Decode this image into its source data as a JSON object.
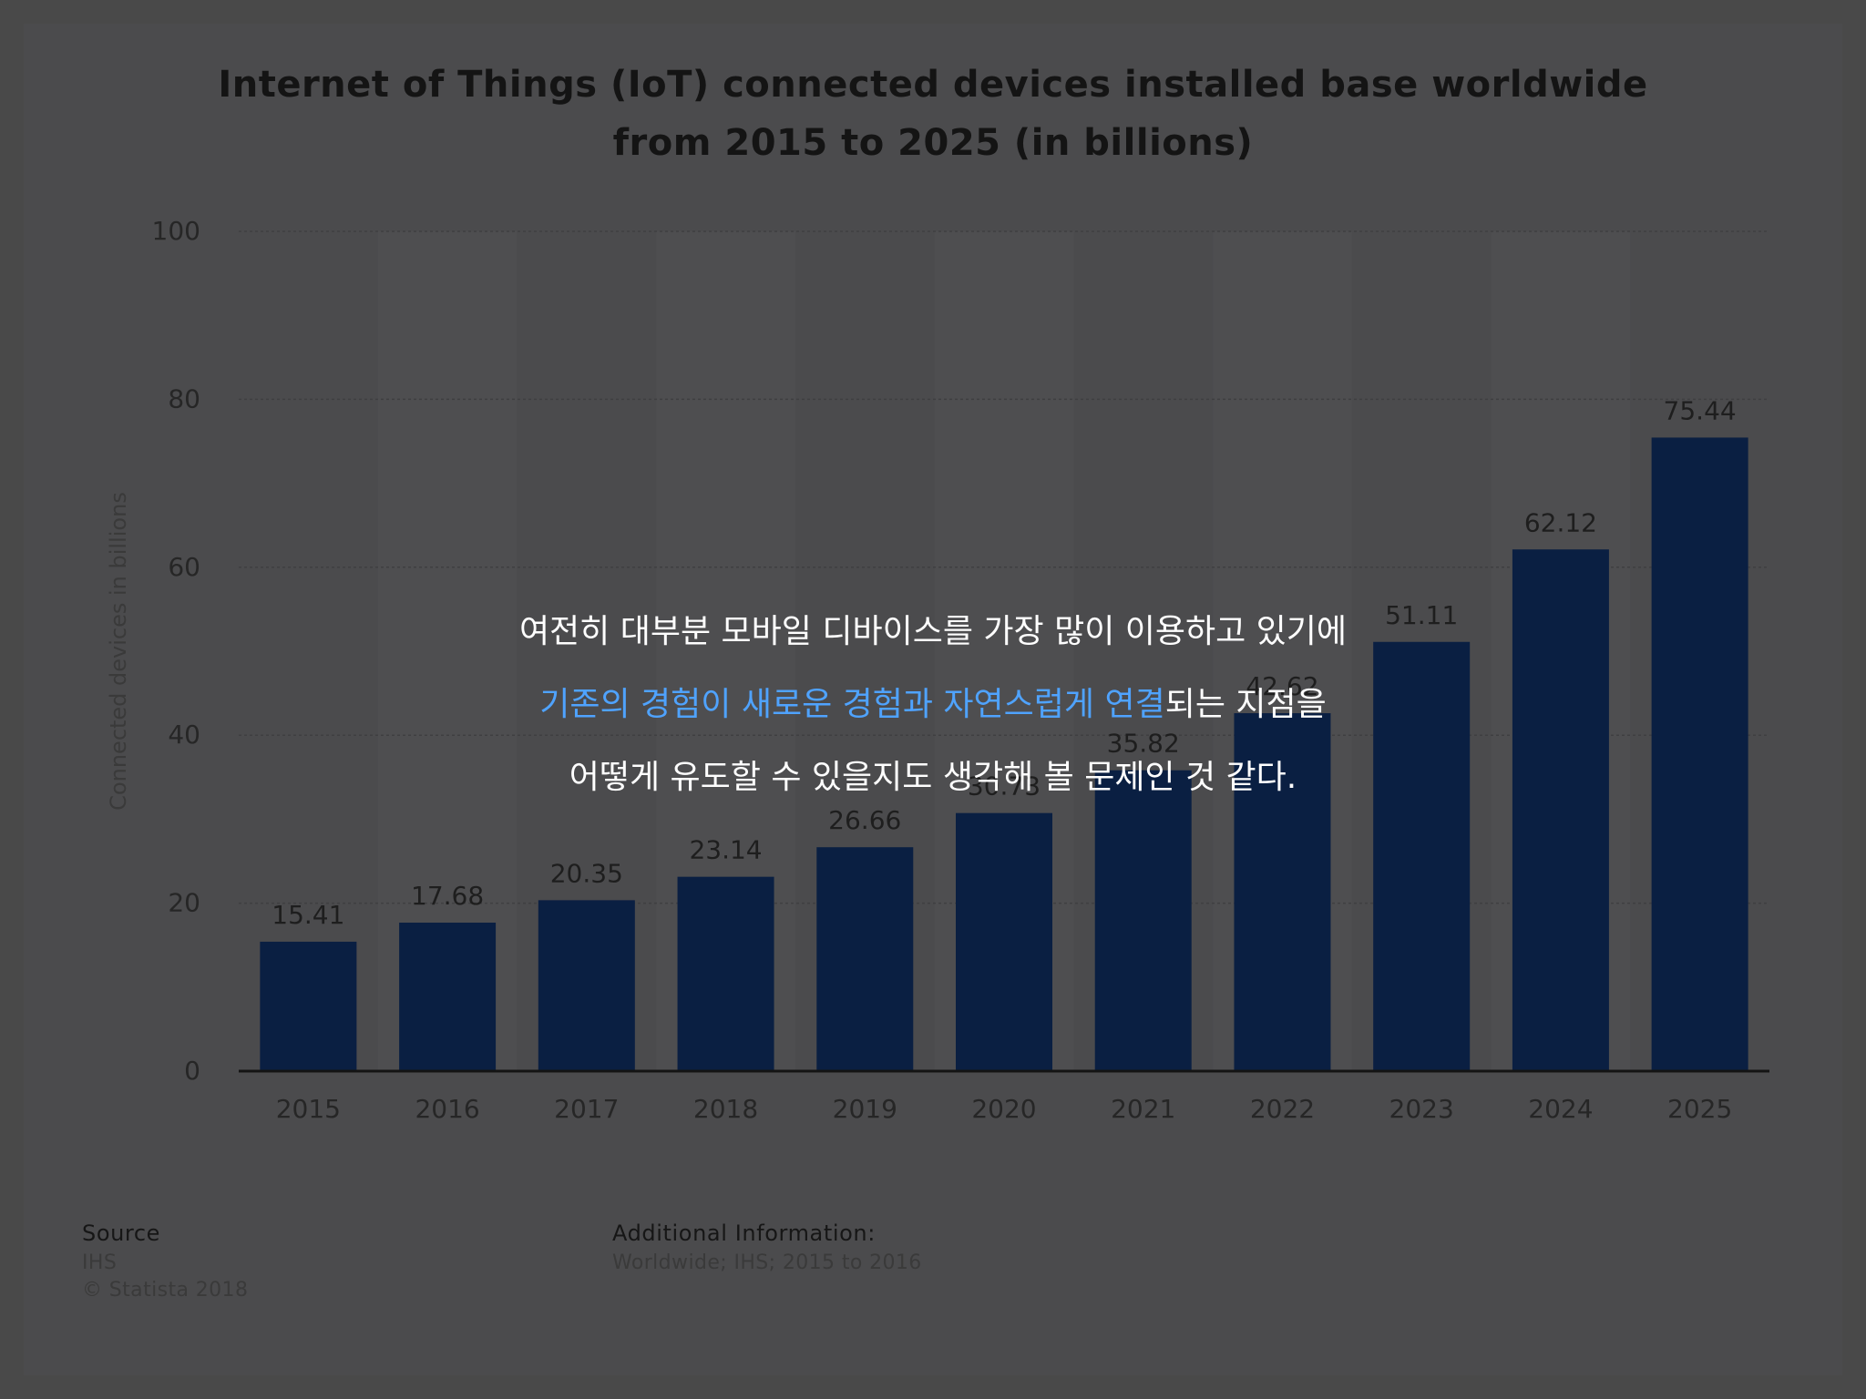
{
  "chart_data": {
    "type": "bar",
    "title_line1": "Internet of Things (IoT) connected devices installed base worldwide",
    "title_line2": "from 2015 to 2025 (in billions)",
    "ylabel": "Connected devices in billions",
    "xlabel": "",
    "ylim": [
      0,
      100
    ],
    "yticks": [
      0,
      20,
      40,
      60,
      80,
      100
    ],
    "grid": true,
    "categories": [
      "2015",
      "2016",
      "2017",
      "2018",
      "2019",
      "2020",
      "2021",
      "2022",
      "2023",
      "2024",
      "2025"
    ],
    "values": [
      15.41,
      17.68,
      20.35,
      23.14,
      26.66,
      30.73,
      35.82,
      42.62,
      51.11,
      62.12,
      75.44
    ],
    "value_labels": [
      "15.41",
      "17.68",
      "20.35",
      "23.14",
      "26.66",
      "30.73",
      "35.82",
      "42.62",
      "51.11",
      "62.12",
      "75.44"
    ],
    "bar_color": "#0a1f42"
  },
  "footer": {
    "source_label": "Source",
    "source_value": "IHS",
    "copyright": "© Statista 2018",
    "additional_label": "Additional Information:",
    "additional_value": "Worldwide; IHS; 2015 to 2016"
  },
  "overlay": {
    "line1": "여전히 대부분 모바일 디바이스를 가장 많이 이용하고 있기에",
    "line2_highlight": "기존의 경험이 새로운 경험과 자연스럽게 연결",
    "line2_rest": "되는 지점을",
    "line3": "어떻게 유도할 수 있을지도 생각해 볼 문제인 것 같다.",
    "highlight_color": "#4fa3ff"
  }
}
